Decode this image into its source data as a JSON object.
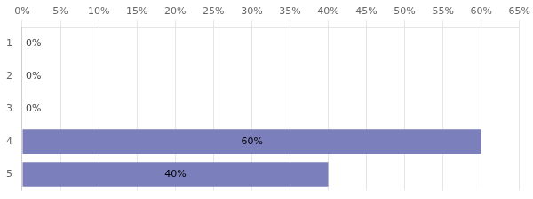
{
  "chart_data": {
    "type": "bar",
    "orientation": "horizontal",
    "categories": [
      "1",
      "2",
      "3",
      "4",
      "5"
    ],
    "values": [
      0,
      0,
      0,
      60,
      40
    ],
    "value_labels": [
      "0%",
      "0%",
      "0%",
      "60%",
      "40%"
    ],
    "data_labels": true,
    "color": "#7b7fbb",
    "xlim": [
      0,
      65
    ],
    "xticks": [
      {
        "value": 0,
        "label": "0%"
      },
      {
        "value": 5,
        "label": "5%"
      },
      {
        "value": 10,
        "label": "10%"
      },
      {
        "value": 15,
        "label": "15%"
      },
      {
        "value": 20,
        "label": "20%"
      },
      {
        "value": 25,
        "label": "25%"
      },
      {
        "value": 30,
        "label": "30%"
      },
      {
        "value": 35,
        "label": "35%"
      },
      {
        "value": 40,
        "label": "40%"
      },
      {
        "value": 45,
        "label": "45%"
      },
      {
        "value": 50,
        "label": "50%"
      },
      {
        "value": 55,
        "label": "55%"
      },
      {
        "value": 60,
        "label": "60%"
      },
      {
        "value": 65,
        "label": "65%"
      }
    ],
    "grid": true
  }
}
